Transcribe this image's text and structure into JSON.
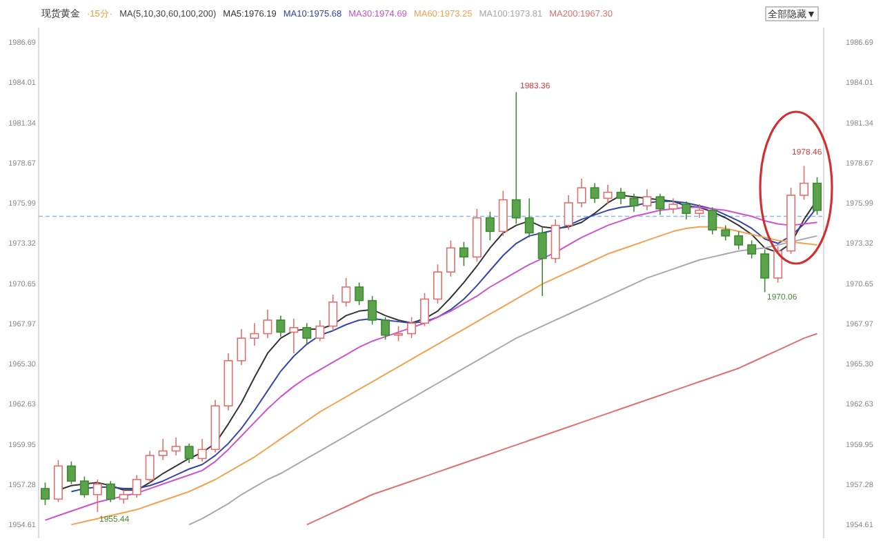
{
  "chart_data": {
    "type": "candlestick",
    "title": "现货黄金",
    "subtitle": "·15分·",
    "legend_title": "MA(5,10,30,60,100,200)",
    "legend": "top left",
    "grid": false,
    "categories": [
      null,
      null,
      null,
      null,
      null,
      null,
      null,
      null,
      null,
      null,
      null,
      null,
      null,
      null,
      null,
      null,
      null,
      null,
      null,
      null,
      null,
      null,
      null,
      null,
      null,
      null,
      null,
      null,
      null,
      null,
      null,
      null,
      null,
      null,
      null,
      null,
      null,
      null,
      null,
      null,
      null,
      null,
      null,
      null,
      null,
      null,
      null,
      null,
      null,
      null,
      null,
      null,
      null,
      null,
      null,
      null,
      null,
      null,
      null,
      null
    ],
    "ohlc": [
      [
        1957.0,
        1957.4,
        1955.9,
        1956.3
      ],
      [
        1956.3,
        1958.9,
        1956.1,
        1958.5
      ],
      [
        1958.5,
        1958.8,
        1957.3,
        1957.5
      ],
      [
        1957.5,
        1957.8,
        1956.4,
        1956.6
      ],
      [
        1956.6,
        1957.6,
        1955.44,
        1957.3
      ],
      [
        1957.3,
        1957.5,
        1956.1,
        1956.3
      ],
      [
        1956.3,
        1956.9,
        1956.0,
        1956.6
      ],
      [
        1956.6,
        1957.9,
        1956.4,
        1957.6
      ],
      [
        1957.6,
        1959.5,
        1957.4,
        1959.2
      ],
      [
        1959.2,
        1960.3,
        1958.9,
        1959.5
      ],
      [
        1959.5,
        1960.4,
        1959.2,
        1959.8
      ],
      [
        1959.8,
        1960.0,
        1958.7,
        1959.0
      ],
      [
        1959.0,
        1960.3,
        1958.8,
        1959.6
      ],
      [
        1959.6,
        1962.9,
        1959.4,
        1962.5
      ],
      [
        1962.5,
        1966.0,
        1962.2,
        1965.5
      ],
      [
        1965.5,
        1967.6,
        1965.2,
        1967.0
      ],
      [
        1967.0,
        1968.0,
        1966.5,
        1967.3
      ],
      [
        1967.3,
        1968.9,
        1967.0,
        1968.2
      ],
      [
        1968.2,
        1968.5,
        1967.1,
        1967.4
      ],
      [
        1967.4,
        1968.3,
        1966.0,
        1967.7
      ],
      [
        1967.7,
        1968.0,
        1966.6,
        1967.0
      ],
      [
        1967.0,
        1968.2,
        1966.8,
        1967.8
      ],
      [
        1967.8,
        1969.9,
        1967.5,
        1969.4
      ],
      [
        1969.4,
        1971.0,
        1969.1,
        1970.4
      ],
      [
        1970.4,
        1970.7,
        1969.2,
        1969.5
      ],
      [
        1969.5,
        1969.8,
        1967.9,
        1968.2
      ],
      [
        1968.2,
        1968.4,
        1966.9,
        1967.2
      ],
      [
        1967.2,
        1967.8,
        1966.8,
        1967.3
      ],
      [
        1967.3,
        1968.4,
        1967.0,
        1968.0
      ],
      [
        1968.0,
        1970.0,
        1967.8,
        1969.6
      ],
      [
        1969.6,
        1971.9,
        1969.3,
        1971.4
      ],
      [
        1971.4,
        1973.5,
        1971.1,
        1973.0
      ],
      [
        1973.0,
        1973.4,
        1971.8,
        1972.4
      ],
      [
        1972.4,
        1975.6,
        1972.1,
        1975.0
      ],
      [
        1975.0,
        1975.4,
        1973.5,
        1974.1
      ],
      [
        1974.1,
        1976.8,
        1973.8,
        1976.2
      ],
      [
        1976.2,
        1983.36,
        1974.6,
        1975.0
      ],
      [
        1975.0,
        1976.3,
        1973.7,
        1974.0
      ],
      [
        1974.0,
        1974.4,
        1969.8,
        1972.3
      ],
      [
        1972.3,
        1974.9,
        1972.0,
        1974.5
      ],
      [
        1974.5,
        1976.5,
        1974.2,
        1976.0
      ],
      [
        1976.0,
        1977.6,
        1975.7,
        1977.0
      ],
      [
        1977.0,
        1977.3,
        1976.0,
        1976.3
      ],
      [
        1976.3,
        1977.2,
        1975.9,
        1976.7
      ],
      [
        1976.7,
        1977.0,
        1975.9,
        1976.3
      ],
      [
        1976.3,
        1976.6,
        1975.4,
        1975.8
      ],
      [
        1975.8,
        1976.9,
        1975.5,
        1976.4
      ],
      [
        1976.4,
        1976.6,
        1975.2,
        1975.6
      ],
      [
        1975.6,
        1976.3,
        1975.3,
        1975.9
      ],
      [
        1975.9,
        1976.1,
        1974.9,
        1975.3
      ],
      [
        1975.3,
        1975.9,
        1975.0,
        1975.5
      ],
      [
        1975.5,
        1975.7,
        1973.9,
        1974.2
      ],
      [
        1974.2,
        1974.5,
        1973.5,
        1973.8
      ],
      [
        1973.8,
        1974.1,
        1972.9,
        1973.2
      ],
      [
        1973.2,
        1973.5,
        1972.3,
        1972.6
      ],
      [
        1972.6,
        1972.9,
        1970.06,
        1971.0
      ],
      [
        1971.0,
        1973.1,
        1970.7,
        1972.8
      ],
      [
        1972.8,
        1977.0,
        1972.6,
        1976.5
      ],
      [
        1976.5,
        1978.46,
        1976.2,
        1977.3
      ],
      [
        1977.3,
        1977.7,
        1975.2,
        1975.5
      ]
    ],
    "series": [
      {
        "type": "line",
        "name": "MA5:1976.19",
        "color": "#333333",
        "values": [
          null,
          1956.9,
          1957.2,
          1957.3,
          1957.4,
          1957.2,
          1956.9,
          1956.9,
          1957.4,
          1958.0,
          1958.5,
          1959.0,
          1959.4,
          1960.0,
          1961.3,
          1962.7,
          1964.4,
          1966.0,
          1967.0,
          1967.5,
          1967.6,
          1967.6,
          1967.9,
          1968.5,
          1968.8,
          1968.9,
          1968.5,
          1968.2,
          1968.0,
          1968.3,
          1968.8,
          1969.7,
          1970.7,
          1971.8,
          1973.0,
          1974.0,
          1974.5,
          1974.8,
          1974.4,
          1974.3,
          1974.4,
          1974.7,
          1975.3,
          1976.0,
          1976.5,
          1976.4,
          1976.3,
          1976.2,
          1976.1,
          1975.8,
          1975.7,
          1975.4,
          1975.0,
          1974.5,
          1973.9,
          1973.0,
          1972.7,
          1973.3,
          1974.9,
          1976.2
        ]
      },
      {
        "type": "line",
        "name": "MA10:1975.68",
        "color": "#3344aa",
        "values": [
          null,
          null,
          1956.8,
          1957.0,
          1957.1,
          1957.1,
          1957.0,
          1957.0,
          1957.2,
          1957.5,
          1957.9,
          1958.3,
          1958.6,
          1959.2,
          1960.0,
          1961.0,
          1962.2,
          1963.5,
          1964.8,
          1965.8,
          1966.6,
          1967.2,
          1967.5,
          1967.9,
          1968.2,
          1968.3,
          1968.2,
          1968.1,
          1968.0,
          1968.1,
          1968.4,
          1968.9,
          1969.6,
          1970.5,
          1971.5,
          1972.5,
          1973.3,
          1973.8,
          1974.0,
          1974.2,
          1974.5,
          1974.9,
          1975.2,
          1975.5,
          1975.7,
          1975.8,
          1976.0,
          1976.1,
          1976.1,
          1976.0,
          1975.8,
          1975.6,
          1975.2,
          1974.8,
          1974.3,
          1973.6,
          1973.3,
          1973.8,
          1974.6,
          1975.7
        ]
      },
      {
        "type": "line",
        "name": "MA30:1974.69",
        "color": "#d050d0",
        "values": [
          1954.9,
          1955.2,
          1955.5,
          1955.8,
          1956.1,
          1956.3,
          1956.5,
          1956.7,
          1957.0,
          1957.3,
          1957.6,
          1957.9,
          1958.2,
          1958.8,
          1959.6,
          1960.5,
          1961.4,
          1962.3,
          1963.1,
          1963.8,
          1964.4,
          1964.9,
          1965.4,
          1965.9,
          1966.4,
          1966.8,
          1967.1,
          1967.4,
          1967.7,
          1968.0,
          1968.4,
          1968.8,
          1969.3,
          1969.8,
          1970.4,
          1970.9,
          1971.4,
          1971.9,
          1972.3,
          1972.7,
          1973.2,
          1973.7,
          1974.1,
          1974.5,
          1974.8,
          1975.1,
          1975.3,
          1975.5,
          1975.6,
          1975.7,
          1975.7,
          1975.6,
          1975.5,
          1975.3,
          1975.1,
          1974.8,
          1974.6,
          1974.5,
          1974.6,
          1974.7
        ]
      },
      {
        "type": "line",
        "name": "MA60:1973.25",
        "color": "#f5a050",
        "values": [
          null,
          null,
          1954.6,
          1954.8,
          1955.0,
          1955.2,
          1955.4,
          1955.6,
          1955.9,
          1956.2,
          1956.5,
          1956.8,
          1957.2,
          1957.6,
          1958.1,
          1958.6,
          1959.1,
          1959.7,
          1960.3,
          1960.9,
          1961.5,
          1962.1,
          1962.6,
          1963.1,
          1963.6,
          1964.1,
          1964.6,
          1965.1,
          1965.6,
          1966.1,
          1966.6,
          1967.1,
          1967.6,
          1968.1,
          1968.6,
          1969.1,
          1969.6,
          1970.1,
          1970.6,
          1971.0,
          1971.4,
          1971.8,
          1972.2,
          1972.6,
          1972.9,
          1973.2,
          1973.5,
          1973.8,
          1974.1,
          1974.3,
          1974.4,
          1974.4,
          1974.3,
          1974.1,
          1973.9,
          1973.7,
          1973.5,
          1973.4,
          1973.3,
          1973.2
        ]
      },
      {
        "type": "line",
        "name": "MA100:1973.81",
        "color": "#a8a8a8",
        "values": [
          null,
          null,
          null,
          null,
          null,
          null,
          null,
          null,
          null,
          null,
          null,
          1954.6,
          1955.0,
          1955.5,
          1956.0,
          1956.6,
          1957.1,
          1957.6,
          1958.0,
          1958.5,
          1959.0,
          1959.5,
          1960.0,
          1960.5,
          1961.0,
          1961.5,
          1962.0,
          1962.5,
          1963.0,
          1963.5,
          1964.0,
          1964.5,
          1965.0,
          1965.5,
          1966.0,
          1966.5,
          1967.0,
          1967.4,
          1967.8,
          1968.2,
          1968.6,
          1969.0,
          1969.4,
          1969.8,
          1970.2,
          1970.6,
          1971.0,
          1971.3,
          1971.6,
          1971.9,
          1972.2,
          1972.4,
          1972.6,
          1972.8,
          1972.9,
          1973.0,
          1973.2,
          1973.4,
          1973.6,
          1973.8
        ]
      },
      {
        "type": "line",
        "name": "MA200:1967.30",
        "color": "#e07070",
        "values": [
          null,
          null,
          null,
          null,
          null,
          null,
          null,
          null,
          null,
          null,
          null,
          null,
          null,
          null,
          null,
          null,
          null,
          null,
          null,
          null,
          1954.6,
          1955.0,
          1955.4,
          1955.8,
          1956.2,
          1956.6,
          1956.9,
          1957.2,
          1957.5,
          1957.8,
          1958.1,
          1958.4,
          1958.7,
          1959.0,
          1959.3,
          1959.6,
          1959.9,
          1960.2,
          1960.5,
          1960.8,
          1961.1,
          1961.4,
          1961.7,
          1962.0,
          1962.3,
          1962.6,
          1962.9,
          1963.2,
          1963.5,
          1963.8,
          1964.1,
          1964.4,
          1964.7,
          1965.0,
          1965.4,
          1965.8,
          1966.2,
          1966.6,
          1967.0,
          1967.3
        ]
      }
    ],
    "ylim": [
      1953.7,
      1987.65
    ],
    "yticks": [
      1954.61,
      1957.28,
      1959.95,
      1962.63,
      {
        "value": 1965.3,
        "label": "1965.30"
      },
      1967.97,
      1970.65,
      1973.32,
      1975.99,
      1978.67,
      1981.34,
      1984.01,
      1986.69
    ],
    "y2lim": [
      1953.7,
      1987.65
    ],
    "y2ticks": [
      1954.61,
      1957.28,
      1959.95,
      1962.63,
      {
        "value": 1965.3,
        "label": "1965.30"
      },
      1967.97,
      1970.65,
      1973.32,
      1975.99,
      1978.67,
      1981.34,
      1984.01,
      1986.69
    ],
    "ref_lines": [
      {
        "axis": "y",
        "value": 1975.1,
        "color": "#8ab8e8",
        "line_style": "dashed"
      }
    ],
    "annotations": [
      "1983.36",
      "1970.06",
      "1978.46",
      "1955.44",
      "全部隐藏▼"
    ]
  }
}
